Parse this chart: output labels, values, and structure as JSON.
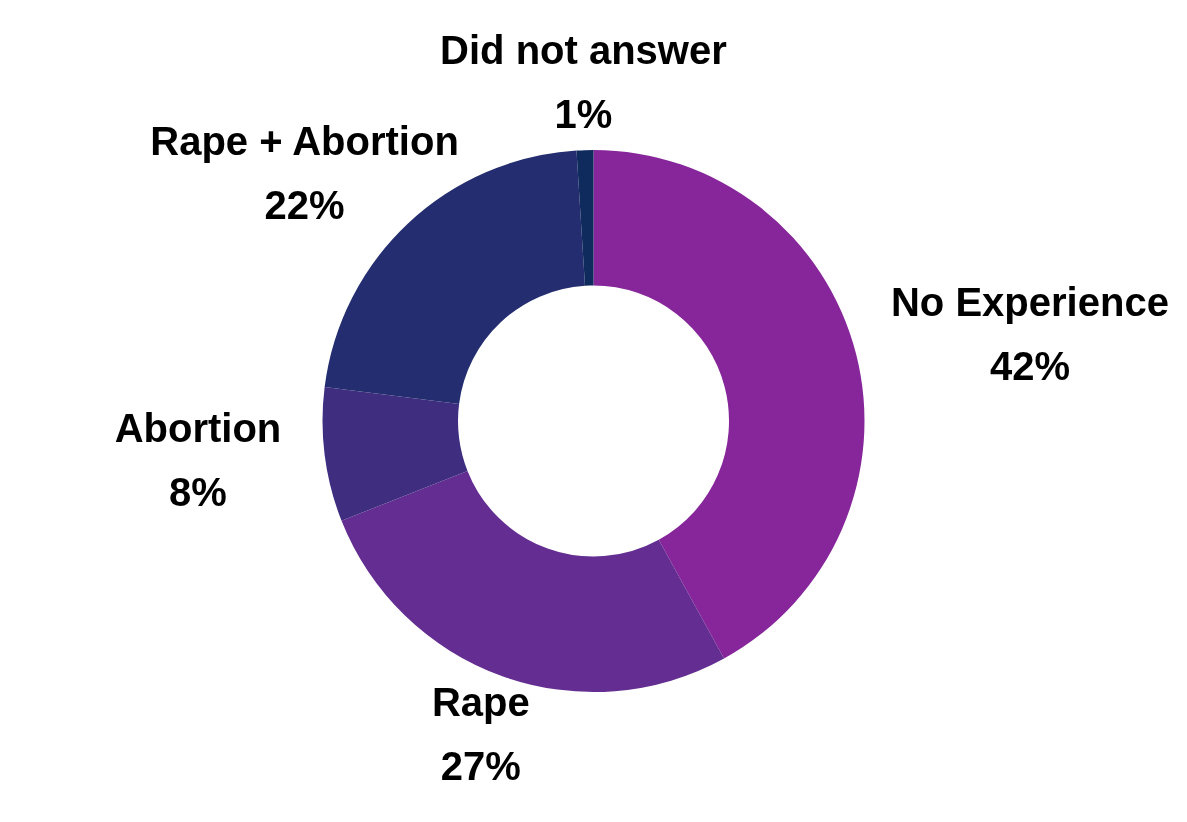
{
  "chart_data": {
    "type": "donut",
    "categories": [
      "No Experience",
      "Rape",
      "Abortion",
      "Rape + Abortion",
      "Did not answer"
    ],
    "values": [
      42,
      27,
      8,
      22,
      1
    ],
    "value_labels": [
      "42%",
      "27%",
      "8%",
      "22%",
      "1%"
    ],
    "colors": [
      "#86269a",
      "#642d91",
      "#3f2d80",
      "#232d6f",
      "#0f2a5c"
    ],
    "legend": false
  }
}
